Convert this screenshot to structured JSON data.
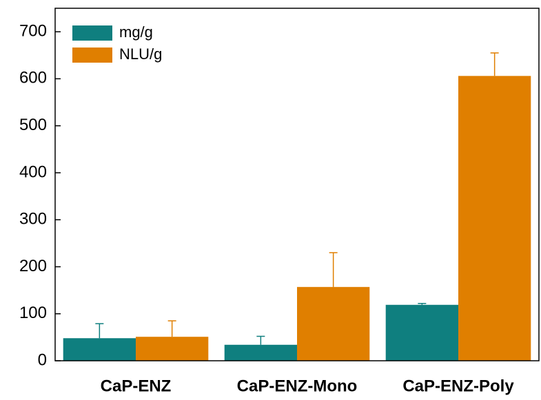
{
  "chart_data": {
    "type": "bar",
    "categories": [
      "CaP-ENZ",
      "CaP-ENZ-Mono",
      "CaP-ENZ-Poly"
    ],
    "series": [
      {
        "name": "mg/g",
        "color": "#0f7f7f",
        "values": [
          48,
          34,
          119
        ],
        "errors": [
          31,
          18,
          3
        ]
      },
      {
        "name": "NLU/g",
        "color": "#e07f00",
        "values": [
          51,
          157,
          606
        ],
        "errors": [
          34,
          73,
          49
        ]
      }
    ],
    "ylim": [
      0,
      750
    ],
    "yticks": [
      0,
      100,
      200,
      300,
      400,
      500,
      600,
      700
    ],
    "legend": "upper-left",
    "grid": false
  }
}
